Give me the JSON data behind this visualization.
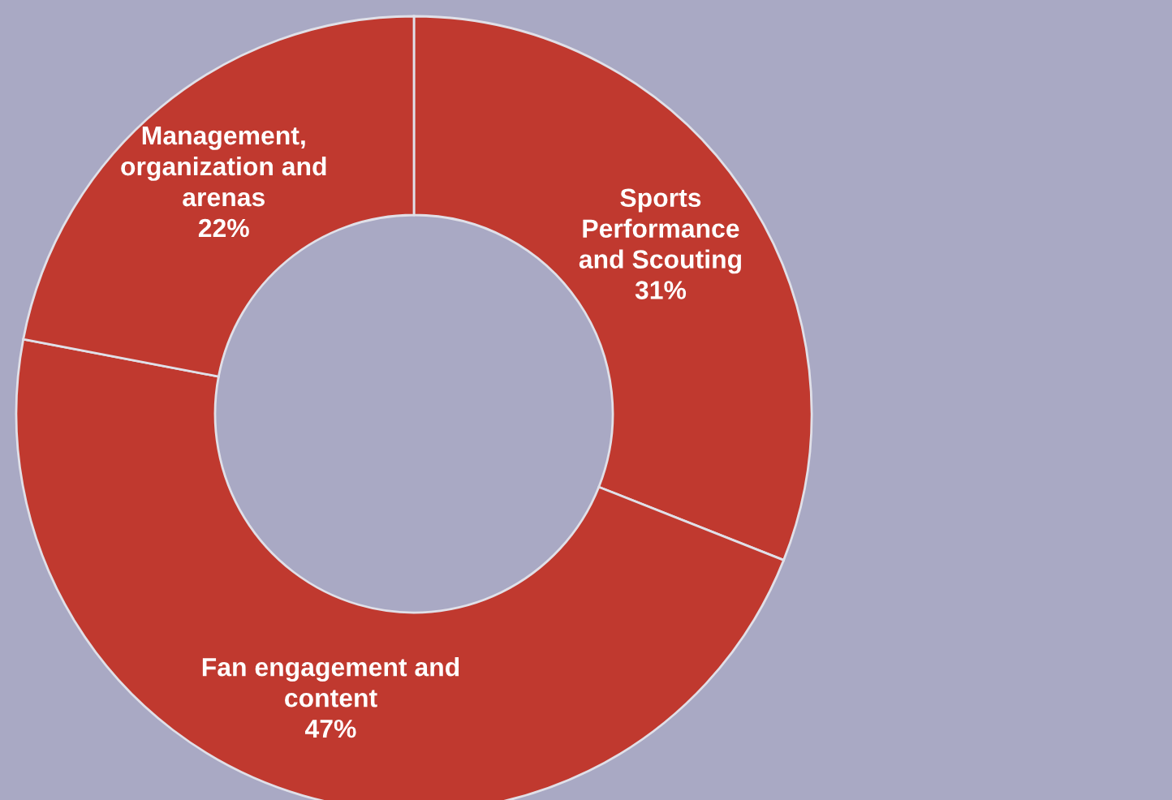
{
  "chart_data": {
    "type": "donut",
    "categories": [
      "Sports\nPerformance\nand Scouting",
      "Fan engagement and\ncontent",
      "Management,\norganization and\narenas"
    ],
    "values": [
      31,
      47,
      22
    ],
    "value_labels": [
      "31%",
      "47%",
      "22%"
    ],
    "colors": [
      "#c0392f",
      "#c0392f",
      "#c0392f"
    ],
    "legend": false
  }
}
